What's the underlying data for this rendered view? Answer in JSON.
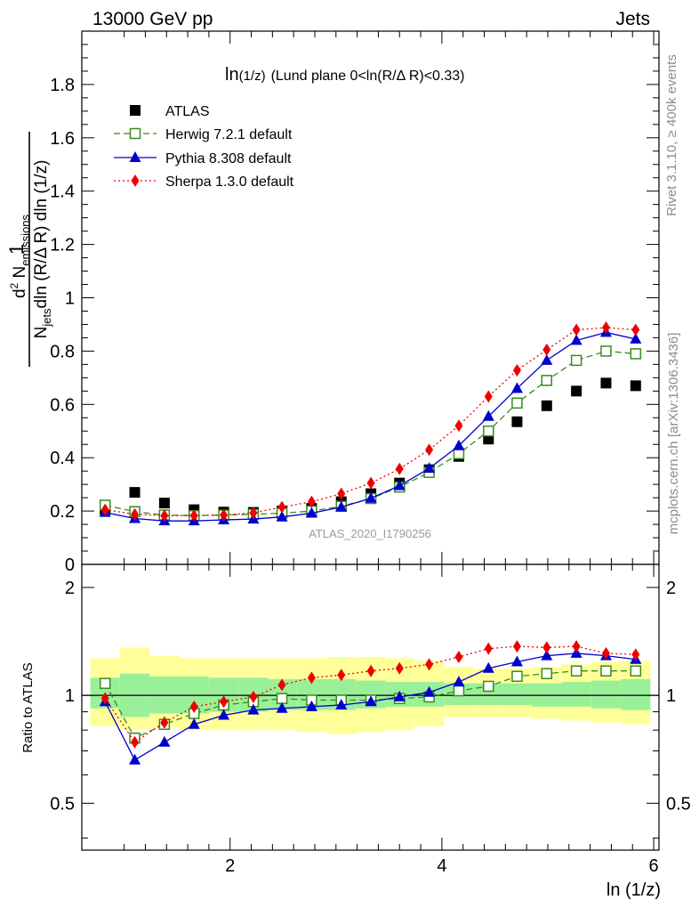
{
  "header": {
    "left": "13000 GeV pp",
    "right": "Jets"
  },
  "plot_label": {
    "main": "ln",
    "sub": "(1/z)",
    "rest": "(Lund plane 0<ln(R/Δ R)<0.33)"
  },
  "watermark": "ATLAS_2020_I1790256",
  "side_labels": {
    "rivet": "Rivet 3.1.10, ≥ 400k events",
    "mcplots": "mcplots.cern.ch [arXiv:1306.3436]"
  },
  "ylabel_top": {
    "one": "1",
    "num_d": "d",
    "num_exp": "2",
    "num_N": " N",
    "num_sub": "emissions",
    "den_N": "N",
    "den_sub": "jets",
    "den_rest": "dln (R/Δ R) dln (1/z)"
  },
  "ylabel_bottom": "Ratio to ATLAS",
  "xlabel": "ln (1/z)",
  "chart_data": {
    "type": "scatter",
    "x": [
      0.82,
      1.1,
      1.38,
      1.66,
      1.94,
      2.22,
      2.49,
      2.77,
      3.05,
      3.33,
      3.6,
      3.88,
      4.16,
      4.44,
      4.71,
      4.99,
      5.27,
      5.55,
      5.83
    ],
    "xlim": [
      0.6,
      6.05
    ],
    "xticks": [
      2,
      4,
      6
    ],
    "main_ylim": [
      0,
      2.0
    ],
    "main_yticks": [
      0,
      0.2,
      0.4,
      0.6,
      0.8,
      1,
      1.2,
      1.4,
      1.6,
      1.8
    ],
    "main_ytick_labels": [
      "0",
      "0.2",
      "0.4",
      "0.6",
      "0.8",
      "1",
      "1.2",
      "1.4",
      "1.6",
      "1.8"
    ],
    "ratio_ylim": [
      0.37,
      2.32
    ],
    "ratio_log": true,
    "ratio_yticks": [
      0.5,
      1,
      2
    ],
    "ratio_ytick_labels": [
      "0.5",
      "1",
      "2"
    ],
    "bin_edges": [
      0.68,
      0.96,
      1.24,
      1.52,
      1.8,
      2.08,
      2.36,
      2.63,
      2.91,
      3.19,
      3.47,
      3.74,
      4.02,
      4.3,
      4.58,
      4.85,
      5.13,
      5.41,
      5.69,
      5.97
    ],
    "band_inner": [
      [
        0.92,
        1.12
      ],
      [
        0.87,
        1.15
      ],
      [
        0.89,
        1.13
      ],
      [
        0.89,
        1.13
      ],
      [
        0.9,
        1.12
      ],
      [
        0.9,
        1.12
      ],
      [
        0.91,
        1.11
      ],
      [
        0.91,
        1.11
      ],
      [
        0.91,
        1.11
      ],
      [
        0.92,
        1.1
      ],
      [
        0.93,
        1.09
      ],
      [
        0.93,
        1.09
      ],
      [
        0.94,
        1.08
      ],
      [
        0.94,
        1.08
      ],
      [
        0.94,
        1.08
      ],
      [
        0.93,
        1.08
      ],
      [
        0.93,
        1.09
      ],
      [
        0.92,
        1.1
      ],
      [
        0.91,
        1.11
      ]
    ],
    "band_outer": [
      [
        0.82,
        1.27
      ],
      [
        0.8,
        1.36
      ],
      [
        0.81,
        1.29
      ],
      [
        0.8,
        1.27
      ],
      [
        0.8,
        1.27
      ],
      [
        0.8,
        1.27
      ],
      [
        0.8,
        1.27
      ],
      [
        0.79,
        1.27
      ],
      [
        0.78,
        1.28
      ],
      [
        0.79,
        1.28
      ],
      [
        0.8,
        1.27
      ],
      [
        0.82,
        1.25
      ],
      [
        0.87,
        1.2
      ],
      [
        0.87,
        1.19
      ],
      [
        0.87,
        1.19
      ],
      [
        0.86,
        1.2
      ],
      [
        0.85,
        1.22
      ],
      [
        0.84,
        1.24
      ],
      [
        0.83,
        1.25
      ]
    ],
    "series": [
      {
        "name": "ATLAS",
        "color": "#000000",
        "marker": "square-filled",
        "line": "none",
        "values": [
          0.205,
          0.27,
          0.23,
          0.205,
          0.196,
          0.195,
          0.2,
          0.21,
          0.235,
          0.265,
          0.305,
          0.355,
          0.405,
          0.47,
          0.535,
          0.595,
          0.65,
          0.68,
          0.67
        ],
        "ratio": [
          1.0,
          1.0,
          1.0,
          1.0,
          1.0,
          1.0,
          1.0,
          1.0,
          1.0,
          1.0,
          1.0,
          1.0,
          1.0,
          1.0,
          1.0,
          1.0,
          1.0,
          1.0,
          1.0
        ]
      },
      {
        "name": "Herwig 7.2.1 default",
        "color": "#3a8a1c",
        "marker": "square-open",
        "line": "dashed",
        "values": [
          0.222,
          0.198,
          0.185,
          0.183,
          0.185,
          0.188,
          0.192,
          0.2,
          0.218,
          0.247,
          0.29,
          0.345,
          0.415,
          0.5,
          0.605,
          0.69,
          0.765,
          0.8,
          0.79
        ],
        "ratio": [
          1.08,
          0.76,
          0.83,
          0.89,
          0.94,
          0.96,
          0.98,
          0.97,
          0.97,
          0.97,
          0.98,
          0.99,
          1.03,
          1.06,
          1.13,
          1.15,
          1.17,
          1.17,
          1.17
        ]
      },
      {
        "name": "Pythia 8.308 default",
        "color": "#0000cc",
        "marker": "triangle-filled",
        "line": "solid",
        "values": [
          0.195,
          0.172,
          0.163,
          0.163,
          0.167,
          0.17,
          0.178,
          0.192,
          0.215,
          0.248,
          0.295,
          0.36,
          0.445,
          0.555,
          0.66,
          0.765,
          0.84,
          0.87,
          0.845
        ],
        "ratio": [
          0.96,
          0.66,
          0.74,
          0.83,
          0.88,
          0.91,
          0.92,
          0.93,
          0.94,
          0.96,
          0.99,
          1.02,
          1.09,
          1.19,
          1.24,
          1.29,
          1.31,
          1.29,
          1.26
        ]
      },
      {
        "name": "Sherpa 1.3.0 default",
        "color": "#ee0000",
        "marker": "diamond-filled",
        "line": "dotted",
        "values": [
          0.205,
          0.188,
          0.183,
          0.183,
          0.185,
          0.193,
          0.215,
          0.235,
          0.265,
          0.305,
          0.358,
          0.43,
          0.52,
          0.63,
          0.728,
          0.805,
          0.88,
          0.888,
          0.88
        ],
        "ratio": [
          0.98,
          0.74,
          0.84,
          0.93,
          0.96,
          0.99,
          1.07,
          1.12,
          1.14,
          1.17,
          1.19,
          1.22,
          1.28,
          1.35,
          1.37,
          1.36,
          1.37,
          1.31,
          1.3
        ]
      }
    ]
  }
}
